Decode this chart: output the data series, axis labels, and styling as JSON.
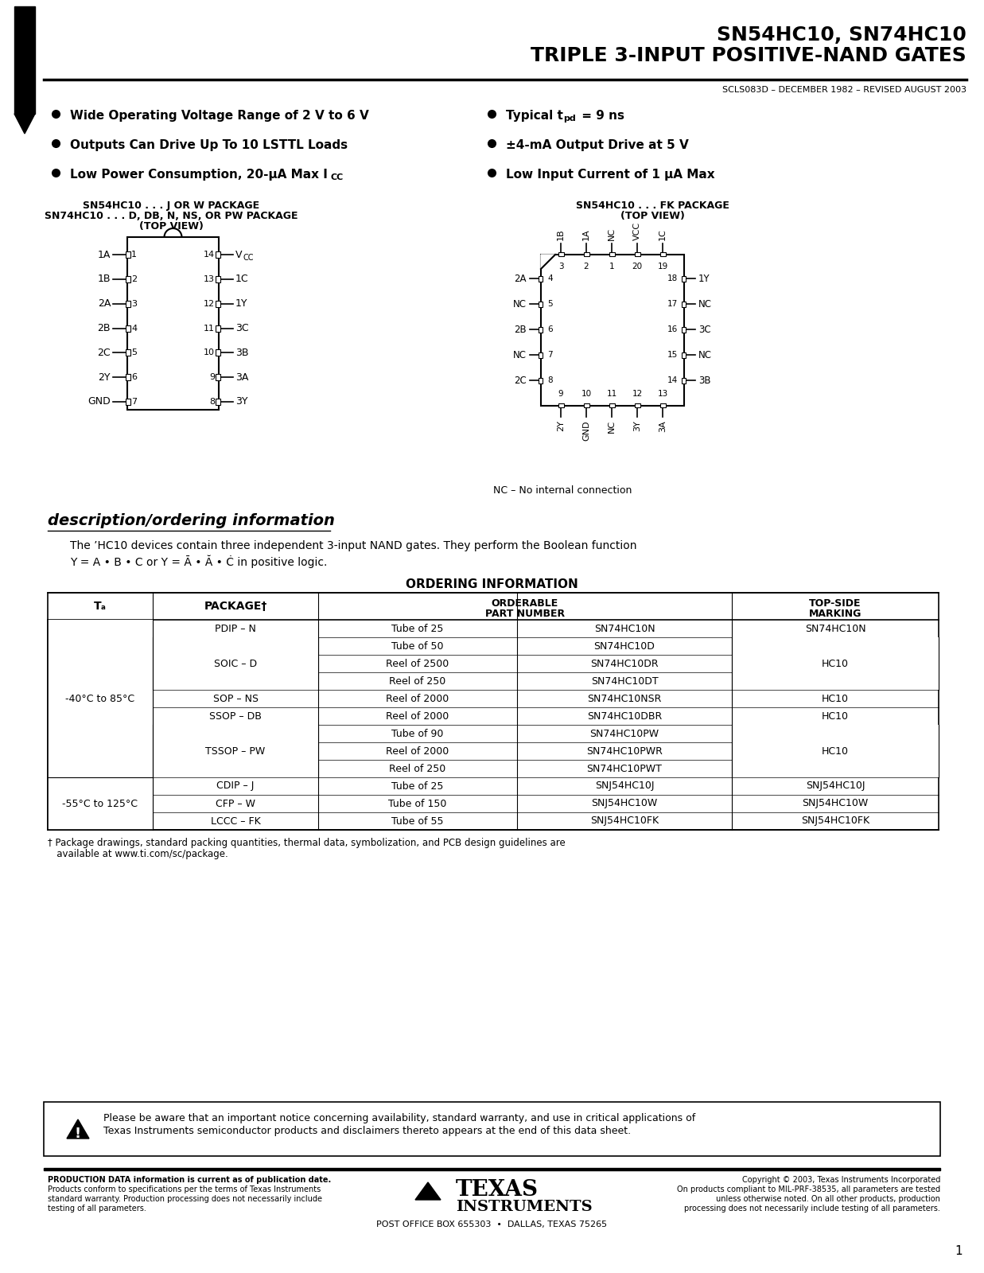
{
  "title_line1": "SN54HC10, SN74HC10",
  "title_line2": "TRIPLE 3-INPUT POSITIVE-NAND GATES",
  "doc_number": "SCLS083D – DECEMBER 1982 – REVISED AUGUST 2003",
  "pkg_left_title1": "SN54HC10 . . . J OR W PACKAGE",
  "pkg_left_title2": "SN74HC10 . . . D, DB, N, NS, OR PW PACKAGE",
  "pkg_left_title3": "(TOP VIEW)",
  "pkg_right_title1": "SN54HC10 . . . FK PACKAGE",
  "pkg_right_title2": "(TOP VIEW)",
  "dip_left_labels": [
    "1A",
    "1B",
    "2A",
    "2B",
    "2C",
    "2Y",
    "GND"
  ],
  "dip_left_nums": [
    "1",
    "2",
    "3",
    "4",
    "5",
    "6",
    "7"
  ],
  "dip_right_labels": [
    "VCC",
    "1C",
    "1Y",
    "3C",
    "3B",
    "3A",
    "3Y"
  ],
  "dip_right_nums": [
    "14",
    "13",
    "12",
    "11",
    "10",
    "9",
    "8"
  ],
  "fk_left_labels": [
    "2A",
    "NC",
    "2B",
    "NC",
    "2C"
  ],
  "fk_left_nums": [
    "4",
    "5",
    "6",
    "7",
    "8"
  ],
  "fk_right_labels": [
    "1Y",
    "NC",
    "3C",
    "NC",
    "3B"
  ],
  "fk_right_nums": [
    "18",
    "17",
    "16",
    "15",
    "14"
  ],
  "fk_top_nums": [
    "3",
    "2",
    "1",
    "20",
    "19"
  ],
  "fk_top_labels": [
    "1B",
    "1A",
    "NC",
    "VCC",
    "1C"
  ],
  "fk_bot_nums": [
    "9",
    "10",
    "11",
    "12",
    "13"
  ],
  "fk_bot_labels": [
    "2Y",
    "GND",
    "NC",
    "3Y",
    "3A"
  ],
  "nc_note": "NC – No internal connection",
  "description_heading": "description/ordering information",
  "description_text1": "The ’HC10 devices contain three independent 3-input NAND gates. They perform the Boolean function",
  "description_text2a": "Y = A • B • C or Y = ",
  "description_text2b": " in positive logic.",
  "ordering_title": "ORDERING INFORMATION",
  "footnote1": "† Package drawings, standard packing quantities, thermal data, symbolization, and PCB design guidelines are",
  "footnote2": "   available at www.ti.com/sc/package.",
  "warning_text1": "Please be aware that an important notice concerning availability, standard warranty, and use in critical applications of",
  "warning_text2": "Texas Instruments semiconductor products and disclaimers thereto appears at the end of this data sheet.",
  "footer_left1": "PRODUCTION DATA information is current as of publication date.",
  "footer_left2": "Products conform to specifications per the terms of Texas Instruments",
  "footer_left3": "standard warranty. Production processing does not necessarily include",
  "footer_left4": "testing of all parameters.",
  "footer_center": "POST OFFICE BOX 655303  •  DALLAS, TEXAS 75265",
  "footer_right1": "Copyright © 2003, Texas Instruments Incorporated",
  "footer_right2": "On products compliant to MIL-PRF-38535, all parameters are tested",
  "footer_right3": "unless otherwise noted. On all other products, production",
  "footer_right4": "processing does not necessarily include testing of all parameters.",
  "page_num": "1",
  "row_data": [
    [
      "-40°C to 85°C",
      "PDIP – N",
      "Tube of 25",
      "SN74HC10N",
      "SN74HC10N"
    ],
    [
      "",
      "SOIC – D",
      "Tube of 50",
      "SN74HC10D",
      ""
    ],
    [
      "",
      "",
      "Reel of 2500",
      "SN74HC10DR",
      "HC10"
    ],
    [
      "",
      "",
      "Reel of 250",
      "SN74HC10DT",
      ""
    ],
    [
      "",
      "SOP – NS",
      "Reel of 2000",
      "SN74HC10NSR",
      "HC10"
    ],
    [
      "",
      "SSOP – DB",
      "Reel of 2000",
      "SN74HC10DBR",
      "HC10"
    ],
    [
      "",
      "TSSOP – PW",
      "Tube of 90",
      "SN74HC10PW",
      ""
    ],
    [
      "",
      "",
      "Reel of 2000",
      "SN74HC10PWR",
      "HC10"
    ],
    [
      "",
      "",
      "Reel of 250",
      "SN74HC10PWT",
      ""
    ],
    [
      "-55°C to 125°C",
      "CDIP – J",
      "Tube of 25",
      "SNJ54HC10J",
      "SNJ54HC10J"
    ],
    [
      "",
      "CFP – W",
      "Tube of 150",
      "SNJ54HC10W",
      "SNJ54HC10W"
    ],
    [
      "",
      "LCCC – FK",
      "Tube of 55",
      "SNJ54HC10FK",
      "SNJ54HC10FK"
    ]
  ]
}
